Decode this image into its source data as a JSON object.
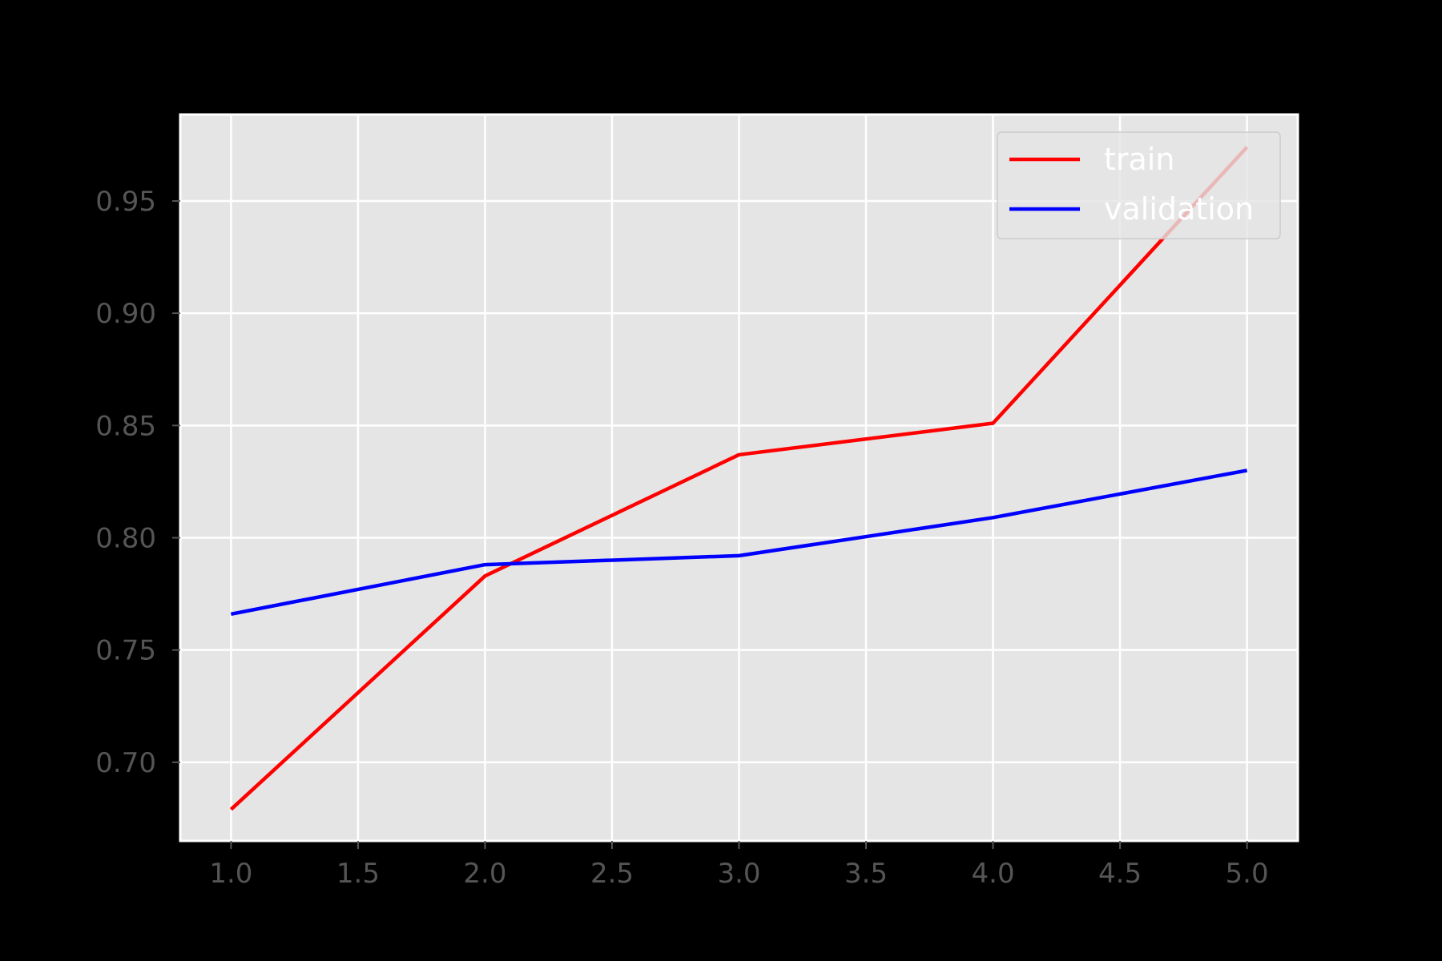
{
  "colors": {
    "figure_background": "#000000",
    "plot_background": "#e5e5e5",
    "grid": "#ffffff",
    "tick_label": "#555555",
    "legend_text": "#ffffff"
  },
  "chart_data": {
    "type": "line",
    "title": "",
    "xlabel": "",
    "ylabel": "",
    "xlim": [
      0.8,
      5.2
    ],
    "ylim": [
      0.665,
      0.9885
    ],
    "x_ticks": [
      1.0,
      1.5,
      2.0,
      2.5,
      3.0,
      3.5,
      4.0,
      4.5,
      5.0
    ],
    "x_tick_labels": [
      "1.0",
      "1.5",
      "2.0",
      "2.5",
      "3.0",
      "3.5",
      "4.0",
      "4.5",
      "5.0"
    ],
    "y_ticks": [
      0.7,
      0.75,
      0.8,
      0.85,
      0.9,
      0.95
    ],
    "y_tick_labels": [
      "0.70",
      "0.75",
      "0.80",
      "0.85",
      "0.90",
      "0.95"
    ],
    "grid": true,
    "legend": {
      "placement": "top-right"
    },
    "series": [
      {
        "name": "train",
        "color": "#ff0000",
        "x": [
          1,
          2,
          3,
          4,
          5
        ],
        "y": [
          0.679,
          0.783,
          0.837,
          0.851,
          0.974
        ]
      },
      {
        "name": "validation",
        "color": "#0000ff",
        "x": [
          1,
          2,
          3,
          4,
          5
        ],
        "y": [
          0.766,
          0.788,
          0.792,
          0.809,
          0.83
        ]
      }
    ]
  }
}
